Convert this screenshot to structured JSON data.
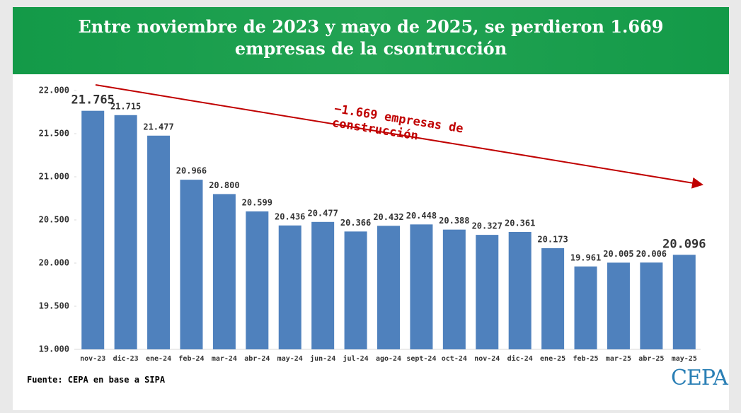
{
  "chart_data": {
    "type": "bar",
    "title": "Entre noviembre de 2023 y mayo de 2025, se perdieron 1.669 empresas de la csontrucción",
    "categories": [
      "nov-23",
      "dic-23",
      "ene-24",
      "feb-24",
      "mar-24",
      "abr-24",
      "may-24",
      "jun-24",
      "jul-24",
      "ago-24",
      "sept-24",
      "oct-24",
      "nov-24",
      "dic-24",
      "ene-25",
      "feb-25",
      "mar-25",
      "abr-25",
      "may-25"
    ],
    "values": [
      21765,
      21715,
      21477,
      20966,
      20800,
      20599,
      20436,
      20477,
      20366,
      20432,
      20448,
      20388,
      20327,
      20361,
      20173,
      19961,
      20005,
      20006,
      20096
    ],
    "value_labels": [
      "21.765",
      "21.715",
      "21.477",
      "20.966",
      "20.800",
      "20.599",
      "20.436",
      "20.477",
      "20.366",
      "20.432",
      "20.448",
      "20.388",
      "20.327",
      "20.361",
      "20.173",
      "19.961",
      "20.005",
      "20.006",
      "20.096"
    ],
    "color": "#4f81bd",
    "ylim": [
      19000,
      22000
    ],
    "yticks": [
      {
        "value": 19000,
        "label": "19.000"
      },
      {
        "value": 19500,
        "label": "19.500"
      },
      {
        "value": 20000,
        "label": "20.000"
      },
      {
        "value": 20500,
        "label": "20.500"
      },
      {
        "value": 21000,
        "label": "21.000"
      },
      {
        "value": 21500,
        "label": "21.500"
      },
      {
        "value": 22000,
        "label": "22.000"
      }
    ],
    "annotation": "−1.669 empresas de construcción",
    "source": "Fuente: CEPA en base a SIPA",
    "logo": "CEPA"
  }
}
